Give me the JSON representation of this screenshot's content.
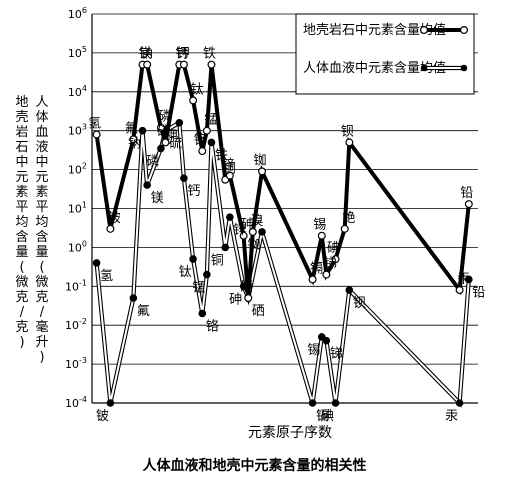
{
  "chart_data": {
    "type": "line",
    "title": "人体血液和地壳中元素含量的相关性",
    "xlabel": "元素原子序数",
    "ylabel_crust": "地壳岩石中元素平均含量(微克/克)",
    "ylabel_blood": "人体血液中元素平均含量(微克/毫升)",
    "y_scale": "log",
    "ylim": [
      0.0001,
      1000000
    ],
    "y_ticks": [
      {
        "value": 1000000,
        "base": "10",
        "exp": "6"
      },
      {
        "value": 100000,
        "base": "10",
        "exp": "5"
      },
      {
        "value": 10000,
        "base": "10",
        "exp": "4"
      },
      {
        "value": 1000,
        "base": "10",
        "exp": "3"
      },
      {
        "value": 100,
        "base": "10",
        "exp": "2"
      },
      {
        "value": 10,
        "base": "10",
        "exp": "1"
      },
      {
        "value": 1,
        "base": "10",
        "exp": "0"
      },
      {
        "value": 0.1,
        "base": "10",
        "exp": "-1"
      },
      {
        "value": 0.01,
        "base": "10",
        "exp": "-2"
      },
      {
        "value": 0.001,
        "base": "10",
        "exp": "-3"
      },
      {
        "value": 0.0001,
        "base": "10",
        "exp": "-4"
      }
    ],
    "grid": "horizontal",
    "legend_position": "top-right",
    "series": [
      {
        "name": "地壳岩石中元素含量均值",
        "marker": "open",
        "line_style": "thick-black",
        "points": [
          {
            "x": 1,
            "y": 800,
            "label": "氢"
          },
          {
            "x": 4,
            "y": 3,
            "label": "铍"
          },
          {
            "x": 9,
            "y": 600,
            "label": "氟"
          },
          {
            "x": 11,
            "y": 50000,
            "label": "钠"
          },
          {
            "x": 12,
            "y": 50000,
            "label": "镁"
          },
          {
            "x": 15,
            "y": 1200,
            "label": "磷"
          },
          {
            "x": 16,
            "y": 500,
            "label": "硫"
          },
          {
            "x": 19,
            "y": 50000,
            "label": "钾"
          },
          {
            "x": 20,
            "y": 50000,
            "label": "钙"
          },
          {
            "x": 22,
            "y": 6000,
            "label": "钛"
          },
          {
            "x": 24,
            "y": 300,
            "label": "铬"
          },
          {
            "x": 25,
            "y": 1000,
            "label": "锰"
          },
          {
            "x": 26,
            "y": 50000,
            "label": "铁"
          },
          {
            "x": 29,
            "y": 55,
            "label": "铜"
          },
          {
            "x": 30,
            "y": 70,
            "label": "锌"
          },
          {
            "x": 33,
            "y": 2,
            "label": "砷"
          },
          {
            "x": 34,
            "y": 0.05,
            "label": "硒"
          },
          {
            "x": 35,
            "y": 2.5,
            "label": "溴"
          },
          {
            "x": 37,
            "y": 90,
            "label": "铷"
          },
          {
            "x": 48,
            "y": 0.15,
            "label": "镉"
          },
          {
            "x": 50,
            "y": 2,
            "label": "锡"
          },
          {
            "x": 51,
            "y": 0.2,
            "label": "锑"
          },
          {
            "x": 53,
            "y": 0.5,
            "label": "碘"
          },
          {
            "x": 55,
            "y": 3,
            "label": "铯"
          },
          {
            "x": 56,
            "y": 500,
            "label": "钡"
          },
          {
            "x": 80,
            "y": 0.08,
            "label": "汞"
          },
          {
            "x": 82,
            "y": 13,
            "label": "铅"
          }
        ]
      },
      {
        "name": "人体血液中元素含量均值",
        "marker": "filled",
        "line_style": "double-line",
        "points": [
          {
            "x": 1,
            "y": 0.4,
            "label": "氢"
          },
          {
            "x": 4,
            "y": 0.0001,
            "label": "铍"
          },
          {
            "x": 9,
            "y": 0.05,
            "label": "氟"
          },
          {
            "x": 11,
            "y": 1000,
            "label": "钠"
          },
          {
            "x": 12,
            "y": 40,
            "label": "镁"
          },
          {
            "x": 15,
            "y": 350,
            "label": "磷"
          },
          {
            "x": 16,
            "y": 1000,
            "label": "硫"
          },
          {
            "x": 19,
            "y": 1600,
            "label": "钾"
          },
          {
            "x": 20,
            "y": 60,
            "label": "钙"
          },
          {
            "x": 22,
            "y": 0.5,
            "label": "钛"
          },
          {
            "x": 24,
            "y": 0.02,
            "label": "铬"
          },
          {
            "x": 25,
            "y": 0.2,
            "label": "锰"
          },
          {
            "x": 26,
            "y": 500,
            "label": "铁"
          },
          {
            "x": 29,
            "y": 1,
            "label": "铜"
          },
          {
            "x": 30,
            "y": 6,
            "label": "锌"
          },
          {
            "x": 33,
            "y": 0.1,
            "label": "砷"
          },
          {
            "x": 34,
            "y": 0.05,
            "label": "硒"
          },
          {
            "x": 37,
            "y": 2.5,
            "label": "铷"
          },
          {
            "x": 48,
            "y": 0.0001,
            "label": "镉"
          },
          {
            "x": 50,
            "y": 0.005,
            "label": "锡"
          },
          {
            "x": 51,
            "y": 0.004,
            "label": "锑"
          },
          {
            "x": 53,
            "y": 0.0001,
            "label": "碘"
          },
          {
            "x": 56,
            "y": 0.08,
            "label": "钡"
          },
          {
            "x": 80,
            "y": 0.0001,
            "label": "汞"
          },
          {
            "x": 82,
            "y": 0.15,
            "label": "铅"
          }
        ]
      }
    ]
  },
  "colors": {
    "ink": "#000000",
    "paper": "#ffffff",
    "grid": "#000000"
  }
}
